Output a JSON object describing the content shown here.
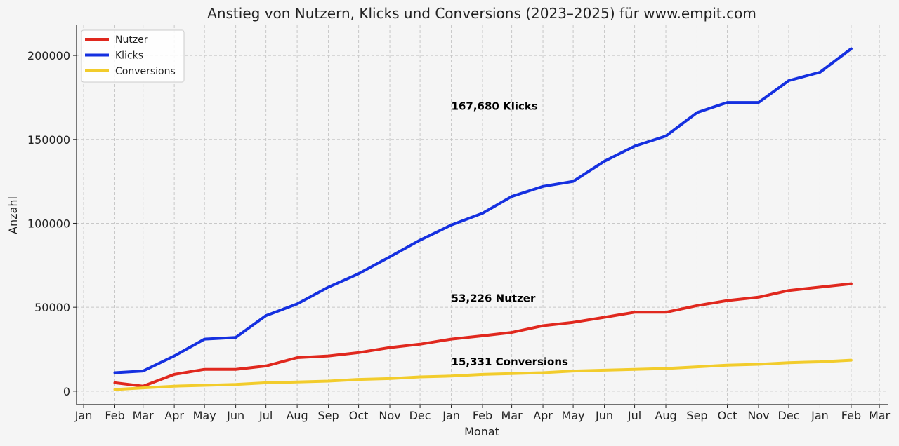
{
  "chart_data": {
    "type": "line",
    "title": "Anstieg von Nutzern, Klicks und Conversions (2023–2025) für www.empit.com",
    "xlabel": "Monat",
    "ylabel": "Anzahl",
    "x_tick_labels": [
      "Jan",
      "Feb",
      "Mar",
      "Apr",
      "May",
      "Jun",
      "Jul",
      "Aug",
      "Sep",
      "Oct",
      "Nov",
      "Dec",
      "Jan",
      "Feb",
      "Mar",
      "Apr",
      "May",
      "Jun",
      "Jul",
      "Aug",
      "Sep",
      "Oct",
      "Nov",
      "Dec",
      "Jan",
      "Feb",
      "Mar"
    ],
    "x_tick_dates": [
      "2023-01",
      "2023-02",
      "2023-03",
      "2023-04",
      "2023-05",
      "2023-06",
      "2023-07",
      "2023-08",
      "2023-09",
      "2023-10",
      "2023-11",
      "2023-12",
      "2024-01",
      "2024-02",
      "2024-03",
      "2024-04",
      "2024-05",
      "2024-06",
      "2024-07",
      "2024-08",
      "2024-09",
      "2024-10",
      "2024-11",
      "2024-12",
      "2025-01",
      "2025-02",
      "2025-03"
    ],
    "y_ticks": [
      0,
      50000,
      100000,
      150000,
      200000
    ],
    "y_tick_labels": [
      "0",
      "50000",
      "100000",
      "150000",
      "200000"
    ],
    "ylim": [
      -8000,
      218000
    ],
    "xlim": [
      "2022-12-25",
      "2025-03-10"
    ],
    "grid": true,
    "legend_position": "top-left",
    "x": [
      "2023-02",
      "2023-03",
      "2023-04",
      "2023-05",
      "2023-06",
      "2023-07",
      "2023-08",
      "2023-09",
      "2023-10",
      "2023-11",
      "2023-12",
      "2024-01",
      "2024-02",
      "2024-03",
      "2024-04",
      "2024-05",
      "2024-06",
      "2024-07",
      "2024-08",
      "2024-09",
      "2024-10",
      "2024-11",
      "2024-12",
      "2025-01",
      "2025-02"
    ],
    "series": [
      {
        "name": "Nutzer",
        "color": "#e0281e",
        "values": [
          5000,
          3000,
          10000,
          13000,
          13000,
          15000,
          20000,
          21000,
          23000,
          26000,
          28000,
          31000,
          33000,
          35000,
          39000,
          41000,
          44000,
          47000,
          47000,
          51000,
          54000,
          56000,
          60000,
          62000,
          64000
        ]
      },
      {
        "name": "Klicks",
        "color": "#1530e0",
        "values": [
          11000,
          12000,
          21000,
          31000,
          32000,
          45000,
          52000,
          62000,
          70000,
          80000,
          90000,
          99000,
          106000,
          116000,
          122000,
          125000,
          137000,
          146000,
          152000,
          166000,
          172000,
          172000,
          185000,
          190000,
          204000
        ]
      },
      {
        "name": "Conversions",
        "color": "#f2cc2c",
        "values": [
          1000,
          2000,
          3000,
          3500,
          4000,
          5000,
          5500,
          6000,
          7000,
          7500,
          8500,
          9000,
          10000,
          10500,
          11000,
          12000,
          12500,
          13000,
          13500,
          14500,
          15500,
          16000,
          17000,
          17500,
          18500
        ]
      }
    ],
    "annotations": [
      {
        "text": "167,680 Klicks",
        "x": "2024-01-01",
        "y": 167680
      },
      {
        "text": "53,226 Nutzer",
        "x": "2024-01-01",
        "y": 53226
      },
      {
        "text": "15,331 Conversions",
        "x": "2024-01-01",
        "y": 15331
      }
    ]
  }
}
